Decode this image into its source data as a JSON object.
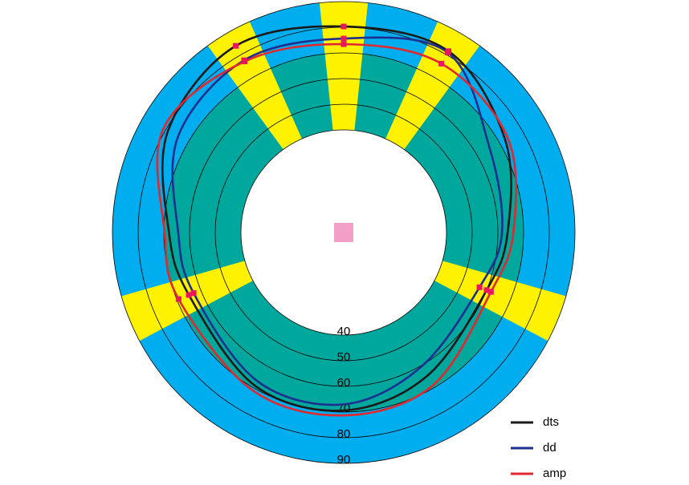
{
  "chart_data": {
    "type": "polar",
    "rlim": [
      0,
      90
    ],
    "rticks": [
      40,
      50,
      60,
      70,
      80,
      90
    ],
    "theta": [
      0,
      30,
      60,
      90,
      112,
      150,
      180,
      210,
      248,
      270,
      300,
      330
    ],
    "sectors": [
      0,
      30,
      112,
      248,
      330
    ],
    "series": [
      {
        "name": "dts",
        "color": "#1a1a1a",
        "values": [
          80.3,
          81.6,
          72.5,
          63.8,
          60,
          64.7,
          69.4,
          69,
          65,
          68,
          79,
          84
        ]
      },
      {
        "name": "dd",
        "color": "#1f2f8f",
        "values": [
          75.6,
          81,
          65.6,
          61.6,
          57,
          60.4,
          67,
          67,
          63,
          64.4,
          74.5,
          77.5
        ]
      },
      {
        "name": "amp",
        "color": "#e0282e",
        "values": [
          73.4,
          76,
          73.7,
          66,
          61.8,
          69,
          71.3,
          71,
          69.3,
          69.7,
          81,
          77
        ]
      }
    ]
  }
}
